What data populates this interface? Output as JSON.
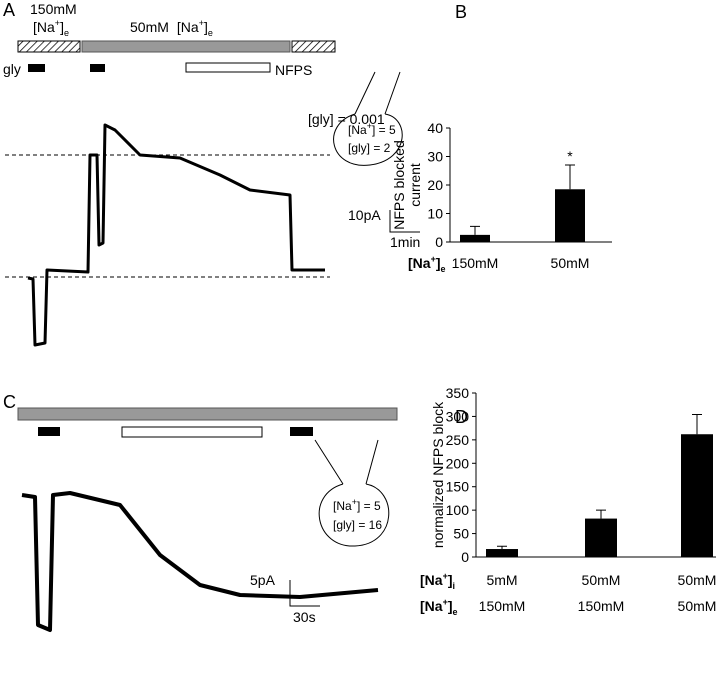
{
  "panels": {
    "A": {
      "letter": "A",
      "high_na": "150mM",
      "low_na": "50mM",
      "gly": "gly",
      "nfps": "NFPS",
      "gly_conc": "[gly] = 0.001",
      "cell_na": [
        "[Na",
        "+",
        "] = 5"
      ],
      "cell_gly": "[gly] = 2",
      "scale_y": "10pA",
      "scale_x": "1min"
    },
    "C": {
      "letter": "C",
      "cell_na": [
        "[Na",
        "+",
        "] = 5"
      ],
      "cell_gly": "[gly] = 16",
      "scale_y": "5pA",
      "scale_x": "30s"
    }
  },
  "na_e": [
    "[Na",
    "+",
    "]",
    "e"
  ],
  "na_i": [
    "[Na",
    "+",
    "]",
    "i"
  ],
  "chart_data": [
    {
      "type": "bar",
      "letter": "B",
      "ylabel": [
        "NFPS blocked",
        "current"
      ],
      "categories": [
        "150mM",
        "50mM"
      ],
      "values": [
        2.5,
        18.5
      ],
      "errors": [
        3,
        8.5
      ],
      "color": "#000000",
      "annotations": [
        null,
        "*"
      ],
      "ylim": [
        0,
        40
      ],
      "yticks": [
        0,
        10,
        20,
        30,
        40
      ]
    },
    {
      "type": "bar",
      "letter": "D",
      "ylabel": [
        "normalized NFPS block"
      ],
      "categories": [
        "5mM",
        "50mM",
        "50mM"
      ],
      "categories_e": [
        "150mM",
        "150mM",
        "50mM"
      ],
      "values": [
        17,
        82,
        262
      ],
      "errors": [
        6,
        18,
        42
      ],
      "color": "#000000",
      "ylim": [
        0,
        350
      ],
      "yticks": [
        0,
        50,
        100,
        150,
        200,
        250,
        300,
        350
      ]
    }
  ]
}
